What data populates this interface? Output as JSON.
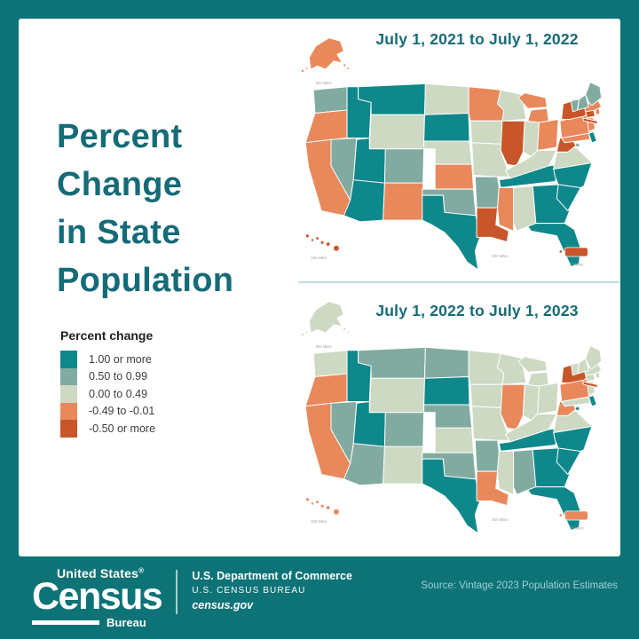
{
  "title": {
    "text": "Percent\nChange\nin State\nPopulation"
  },
  "legend": {
    "title": "Percent change",
    "items": [
      {
        "label": "1.00 or more",
        "color": "#0e888b"
      },
      {
        "label": "0.50 to 0.99",
        "color": "#81aba1"
      },
      {
        "label": "0.00 to 0.49",
        "color": "#cdd9c2"
      },
      {
        "label": "-0.49 to -0.01",
        "color": "#e8885b"
      },
      {
        "label": "-0.50 or more",
        "color": "#c9552a"
      }
    ]
  },
  "maps": [
    {
      "id": "map-2021-2022",
      "title": "July 1, 2021 to July 1, 2022",
      "scale_labels": {
        "alaska": "500 Miles",
        "hawaii": "100 Miles",
        "puerto_rico": "50 Miles",
        "main": "500 Miles"
      },
      "categories": {
        "WA": 1,
        "OR": 3,
        "CA": 3,
        "NV": 1,
        "ID": 0,
        "MT": 0,
        "WY": 2,
        "UT": 0,
        "CO": 1,
        "AZ": 0,
        "NM": 3,
        "ND": 2,
        "SD": 0,
        "NE": 2,
        "KS": 3,
        "OK": 1,
        "TX": 0,
        "MN": 3,
        "IA": 2,
        "MO": 2,
        "AR": 1,
        "LA": 4,
        "WI": 2,
        "IL": 4,
        "MI": 3,
        "IN": 2,
        "OH": 3,
        "KY": 2,
        "TN": 0,
        "MS": 3,
        "AL": 2,
        "GA": 0,
        "FL": 0,
        "SC": 0,
        "NC": 0,
        "VA": 2,
        "WV": 4,
        "MD": 3,
        "DE": 0,
        "NJ": 3,
        "PA": 3,
        "NY": 4,
        "CT": 4,
        "RI": 3,
        "MA": 3,
        "VT": 1,
        "NH": 1,
        "ME": 1,
        "DC": 1,
        "AK": 3,
        "HI": 4,
        "PR": 4
      }
    },
    {
      "id": "map-2022-2023",
      "title": "July 1, 2022 to July 1, 2023",
      "scale_labels": {
        "alaska": "500 Miles",
        "hawaii": "100 Miles",
        "puerto_rico": "50 Miles",
        "main": "500 Miles"
      },
      "categories": {
        "WA": 2,
        "OR": 3,
        "CA": 3,
        "NV": 1,
        "ID": 0,
        "MT": 1,
        "WY": 2,
        "UT": 0,
        "CO": 1,
        "AZ": 1,
        "NM": 2,
        "ND": 1,
        "SD": 0,
        "NE": 1,
        "KS": 2,
        "OK": 1,
        "TX": 0,
        "MN": 2,
        "IA": 2,
        "MO": 2,
        "AR": 1,
        "LA": 3,
        "WI": 2,
        "IL": 3,
        "MI": 2,
        "IN": 2,
        "OH": 2,
        "KY": 2,
        "TN": 0,
        "MS": 2,
        "AL": 1,
        "GA": 0,
        "FL": 0,
        "SC": 0,
        "NC": 0,
        "VA": 2,
        "WV": 3,
        "MD": 2,
        "DE": 0,
        "NJ": 2,
        "PA": 3,
        "NY": 4,
        "CT": 2,
        "RI": 2,
        "MA": 2,
        "VT": 2,
        "NH": 2,
        "ME": 2,
        "DC": 0,
        "AK": 2,
        "HI": 3,
        "PR": 3
      }
    }
  ],
  "footer": {
    "logo": {
      "top": "United States",
      "reg": "®",
      "main": "Census",
      "sub": "Bureau"
    },
    "dept_line1": "U.S. Department of Commerce",
    "dept_line2": "U.S. CENSUS BUREAU",
    "dept_line3": "census.gov",
    "source": "Source: Vintage 2023 Population Estimates"
  },
  "colors": {
    "frame": "#0d7377",
    "panel": "#ffffff",
    "title_text": "#156b77",
    "divider": "#bedcdd",
    "source_text": "#9fcfd3",
    "state_border": "#ffffff"
  }
}
